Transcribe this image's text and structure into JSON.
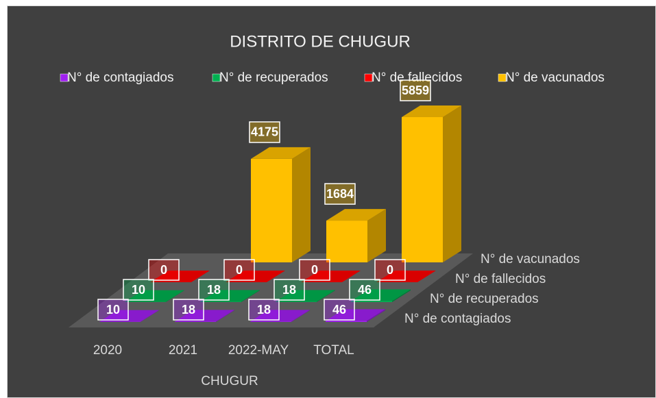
{
  "chart_data": {
    "type": "bar3d",
    "title": "DISTRITO DE CHUGUR",
    "categories": [
      "2020",
      "2021",
      "2022-MAY",
      "TOTAL"
    ],
    "x_label": "CHUGUR",
    "series": [
      {
        "name": "N° de contagiados",
        "color": "#a020f0",
        "values": [
          10,
          18,
          18,
          46
        ]
      },
      {
        "name": "N° de recuperados",
        "color": "#00b050",
        "values": [
          10,
          18,
          18,
          46
        ]
      },
      {
        "name": "N° de fallecidos",
        "color": "#ff0000",
        "values": [
          0,
          0,
          0,
          0
        ]
      },
      {
        "name": "N° de vacunados",
        "color": "#ffc000",
        "values": [
          null,
          4175,
          1684,
          5859
        ]
      }
    ],
    "legend": "top"
  }
}
